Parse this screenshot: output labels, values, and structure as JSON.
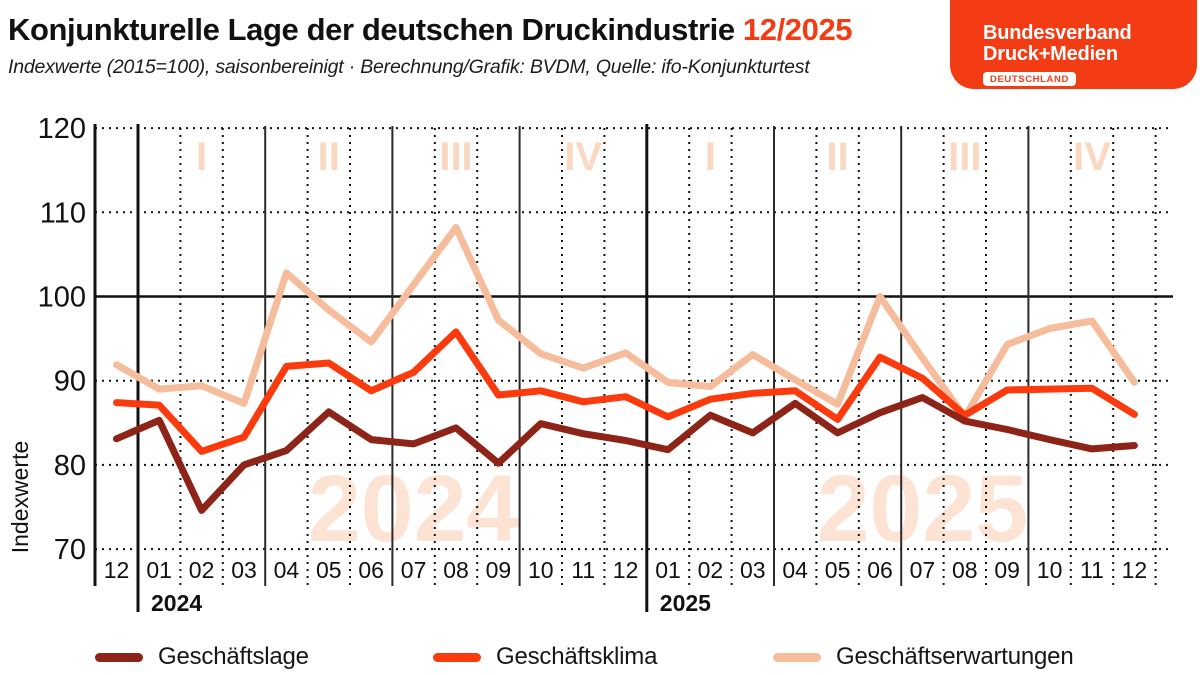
{
  "header": {
    "title": "Konjunkturelle Lage der deutschen Druckindustrie",
    "period": "12/2025",
    "subtitle": "Indexwerte (2015=100), saisonbereinigt · Berechnung/Grafik: BVDM, Quelle: ifo-Konjunkturtest",
    "accent_color": "#F43C14"
  },
  "logo": {
    "line1": "Bundesverband",
    "line2": "Druck+Medien",
    "badge": "DEUTSCHLAND",
    "bg_color": "#F43C14"
  },
  "chart_data": {
    "type": "line",
    "ylabel": "Indexwerte",
    "ylim": [
      70,
      120
    ],
    "yticks": [
      120,
      110,
      100,
      90,
      80,
      70
    ],
    "solid_gridline_at": 100,
    "grid": "dotted",
    "x_labels": [
      "12",
      "01",
      "02",
      "03",
      "04",
      "05",
      "06",
      "07",
      "08",
      "09",
      "10",
      "11",
      "12",
      "01",
      "02",
      "03",
      "04",
      "05",
      "06",
      "07",
      "08",
      "09",
      "10",
      "11",
      "12"
    ],
    "years": [
      {
        "label": "2024",
        "month_index": 1
      },
      {
        "label": "2025",
        "month_index": 13
      }
    ],
    "quarter_labels": [
      "I",
      "II",
      "III",
      "IV",
      "I",
      "II",
      "III",
      "IV"
    ],
    "watermarks": [
      {
        "text": "2024",
        "month_index": 7
      },
      {
        "text": "2025",
        "month_index": 19
      }
    ],
    "series": [
      {
        "name": "Geschäftslage",
        "color": "#8E2418",
        "values": [
          83.1,
          85.3,
          74.6,
          80.0,
          81.7,
          86.3,
          83.0,
          82.5,
          84.4,
          80.2,
          84.9,
          83.7,
          82.9,
          81.8,
          85.9,
          83.8,
          87.3,
          83.8,
          86.2,
          88.0,
          85.2,
          84.2,
          83.0,
          81.9,
          82.3
        ]
      },
      {
        "name": "Geschäftsklima",
        "color": "#FB3B0E",
        "values": [
          87.4,
          87.1,
          81.6,
          83.3,
          91.7,
          92.1,
          88.8,
          91.0,
          95.8,
          88.3,
          88.8,
          87.5,
          88.1,
          85.7,
          87.8,
          88.5,
          88.8,
          85.4,
          92.8,
          90.3,
          85.9,
          88.9,
          89.0,
          89.1,
          86.0
        ]
      },
      {
        "name": "Geschäftserwartungen",
        "color": "#F6BD9D",
        "values": [
          91.9,
          89.0,
          89.4,
          87.3,
          102.8,
          98.4,
          94.6,
          101.4,
          108.2,
          97.2,
          93.2,
          91.5,
          93.3,
          89.8,
          89.3,
          93.1,
          90.1,
          87.2,
          100.0,
          92.7,
          85.7,
          94.3,
          96.2,
          97.1,
          89.8
        ]
      }
    ],
    "colors": {
      "grid": "#111111",
      "quarter_line": "#2b2b2b",
      "roman": "#FBD8C2",
      "watermark": "#FCE3D4",
      "axis_text": "#111111"
    },
    "legend_position": "bottom"
  },
  "legend": {
    "items": [
      {
        "label": "Geschäftslage",
        "color": "#8E2418"
      },
      {
        "label": "Geschäftsklima",
        "color": "#FB3B0E"
      },
      {
        "label": "Geschäftserwartungen",
        "color": "#F6BD9D"
      }
    ]
  }
}
